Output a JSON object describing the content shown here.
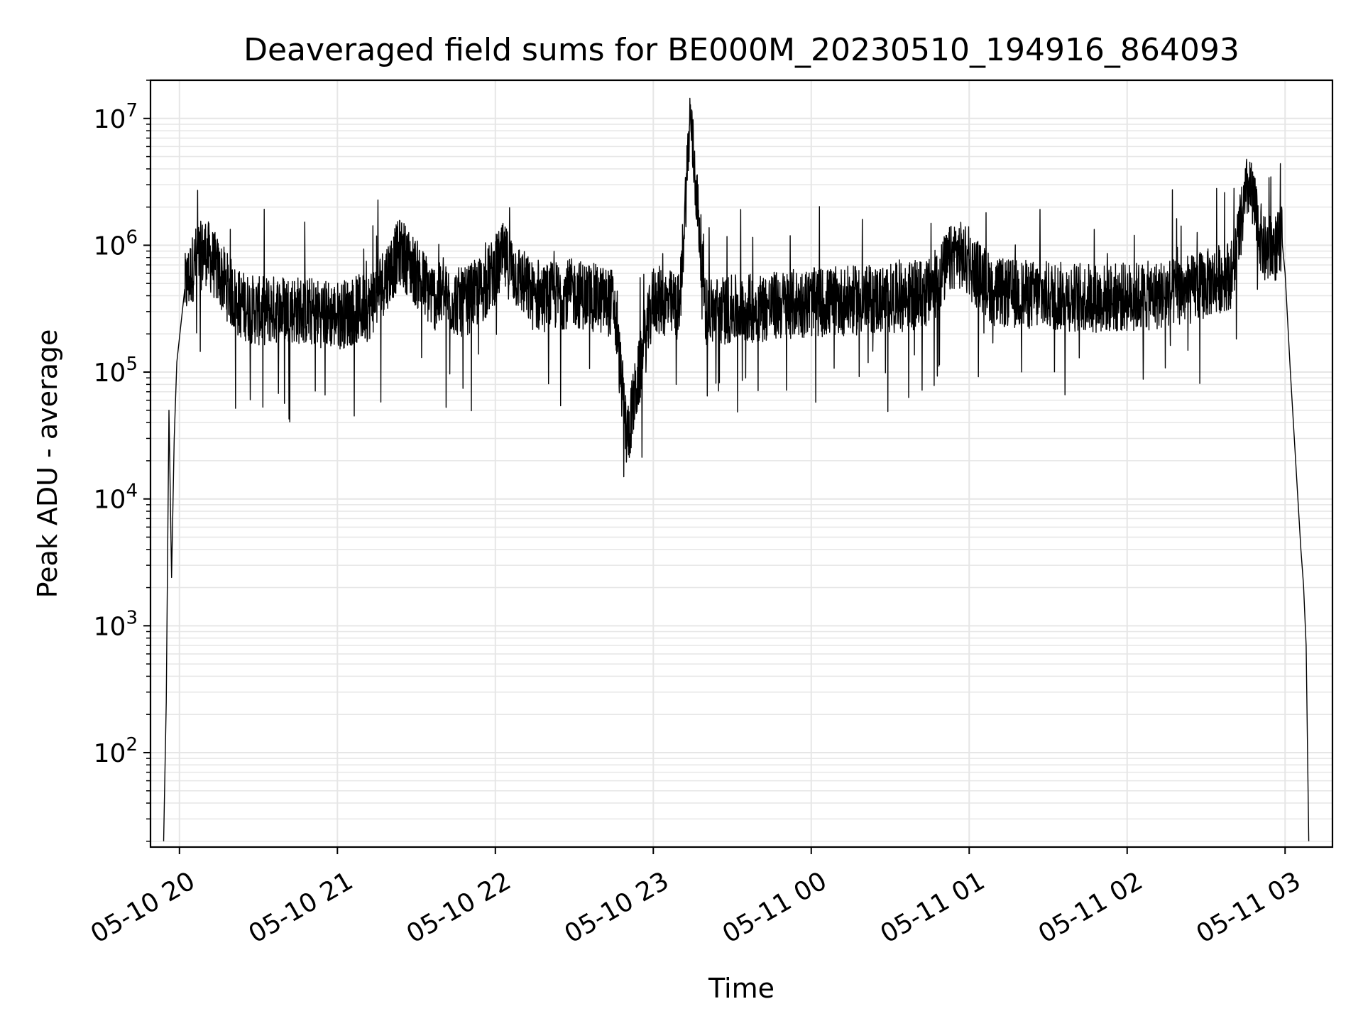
{
  "chart_data": {
    "type": "line",
    "title": "Deaveraged field sums for BE000M_20230510_194916_864093",
    "xlabel": "Time",
    "ylabel": "Peak ADU - average",
    "y_scale": "log",
    "ylim": [
      18,
      20000000
    ],
    "xlim": [
      "2023-05-10 19:49",
      "2023-05-11 03:18"
    ],
    "grid": true,
    "grid_color": "#e6e6e6",
    "line_color": "#000000",
    "x_ticks": [
      {
        "label": "05-10 20",
        "value": "2023-05-10 20:00"
      },
      {
        "label": "05-10 21",
        "value": "2023-05-10 21:00"
      },
      {
        "label": "05-10 22",
        "value": "2023-05-10 22:00"
      },
      {
        "label": "05-10 23",
        "value": "2023-05-10 23:00"
      },
      {
        "label": "05-11 00",
        "value": "2023-05-11 00:00"
      },
      {
        "label": "05-11 01",
        "value": "2023-05-11 01:00"
      },
      {
        "label": "05-11 02",
        "value": "2023-05-11 02:00"
      },
      {
        "label": "05-11 03",
        "value": "2023-05-11 03:00"
      }
    ],
    "y_ticks": [
      {
        "base": "10",
        "exp": "2",
        "value": 100
      },
      {
        "base": "10",
        "exp": "3",
        "value": 1000
      },
      {
        "base": "10",
        "exp": "4",
        "value": 10000
      },
      {
        "base": "10",
        "exp": "5",
        "value": 100000
      },
      {
        "base": "10",
        "exp": "6",
        "value": 1000000
      },
      {
        "base": "10",
        "exp": "7",
        "value": 10000000
      }
    ],
    "series": [
      {
        "x": [
          "2023-05-10 19:54",
          "2023-05-10 19:55",
          "2023-05-10 19:56",
          "2023-05-10 19:57",
          "2023-05-10 19:58",
          "2023-05-10 19:59",
          "2023-05-10 20:02",
          "2023-05-10 20:06",
          "2023-05-10 20:10",
          "2023-05-10 20:15",
          "2023-05-10 20:22",
          "2023-05-10 20:30",
          "2023-05-10 20:40",
          "2023-05-10 20:50",
          "2023-05-10 21:00",
          "2023-05-10 21:12",
          "2023-05-10 21:24",
          "2023-05-10 21:36",
          "2023-05-10 21:48",
          "2023-05-10 21:55",
          "2023-05-10 22:03",
          "2023-05-10 22:15",
          "2023-05-10 22:30",
          "2023-05-10 22:45",
          "2023-05-10 22:50",
          "2023-05-10 23:00",
          "2023-05-10 23:10",
          "2023-05-10 23:14",
          "2023-05-10 23:20",
          "2023-05-10 23:30",
          "2023-05-10 23:45",
          "2023-05-10 23:55",
          "2023-05-11 00:10",
          "2023-05-11 00:30",
          "2023-05-11 00:45",
          "2023-05-11 00:55",
          "2023-05-11 01:10",
          "2023-05-11 01:30",
          "2023-05-11 01:50",
          "2023-05-11 02:10",
          "2023-05-11 02:25",
          "2023-05-11 02:40",
          "2023-05-11 02:46",
          "2023-05-11 02:52",
          "2023-05-11 02:59",
          "2023-05-11 03:00",
          "2023-05-11 03:02",
          "2023-05-11 03:04",
          "2023-05-11 03:06",
          "2023-05-11 03:07",
          "2023-05-11 03:08",
          "2023-05-11 03:09"
        ],
        "y": [
          20,
          250,
          50000,
          2400,
          30000,
          120000,
          450000,
          750000,
          900000,
          600000,
          350000,
          300000,
          320000,
          300000,
          280000,
          330000,
          900000,
          400000,
          350000,
          450000,
          800000,
          380000,
          420000,
          350000,
          30000,
          380000,
          320000,
          10700000,
          300000,
          310000,
          330000,
          350000,
          360000,
          380000,
          420000,
          900000,
          420000,
          400000,
          380000,
          400000,
          450000,
          600000,
          3100000,
          900000,
          1000000,
          600000,
          100000,
          20000,
          4000,
          2100,
          700,
          20
        ]
      }
    ]
  }
}
